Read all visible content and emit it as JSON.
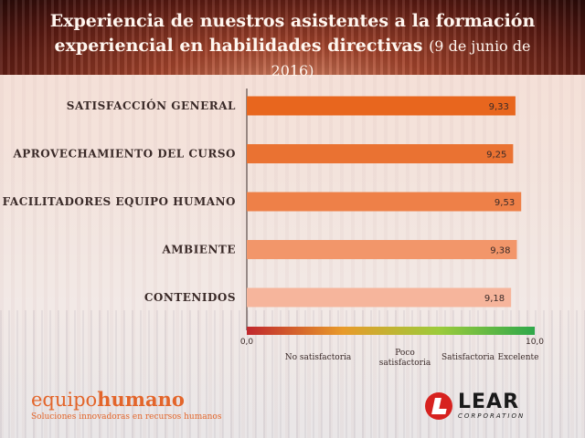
{
  "header": {
    "title_line1": "Experiencia de nuestros asistentes a la formación",
    "title_line2": "experiencial en habilidades directivas",
    "title_date": "(9 de junio de 2016)"
  },
  "chart_data": {
    "type": "bar",
    "orientation": "horizontal",
    "title": "Experiencia de nuestros asistentes a la formación experiencial en habilidades directivas (9 de junio de 2016)",
    "categories": [
      "SATISFACCIÓN GENERAL",
      "APROVECHAMIENTO DEL CURSO",
      "FACILITADORES EQUIPO HUMANO",
      "AMBIENTE",
      "CONTENIDOS"
    ],
    "values": [
      9.33,
      9.25,
      9.53,
      9.38,
      9.18
    ],
    "value_labels": [
      "9,33",
      "9,25",
      "9,53",
      "9,38",
      "9,18"
    ],
    "bar_colors": [
      "#e8661e",
      "#ea7232",
      "#ee8048",
      "#f2966a",
      "#f6b59c"
    ],
    "xlim": [
      0,
      10
    ],
    "x_tick_labels": [
      "0,0",
      "10,0"
    ],
    "scale_labels": [
      "No satisfactoria",
      "Poco satisfactoria",
      "Satisfactoria",
      "Excelente"
    ],
    "scale_gradient": [
      "#c0272d",
      "#e89a2a",
      "#9ccb3b",
      "#2fa84a"
    ],
    "grid": false,
    "legend": "none"
  },
  "logos": {
    "left_part1": "equipo",
    "left_part2": "humano",
    "left_tagline": "Soluciones innovadoras en recursos humanos",
    "right_name": "LEAR",
    "right_sub": "CORPORATION"
  }
}
